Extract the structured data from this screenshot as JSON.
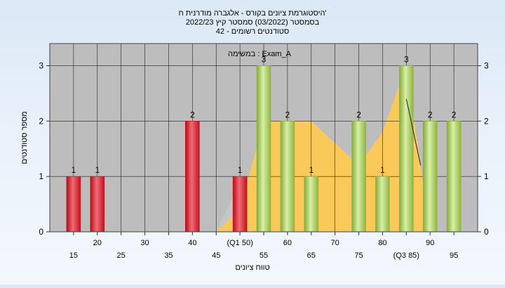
{
  "chart_data": {
    "type": "bar",
    "title_lines": [
      "היסטוגרמת ציונים בקורס - אלגברה מודרנית ח'",
      "בסמסטר  (03/2022)  סמסטר קיץ 2022/23",
      "סטודנטים רשומים - 42"
    ],
    "ylabel": "מספר סטודנטים",
    "xlabel": "טווח ציונים",
    "annotation": "במשימה : Exam_A",
    "ylim": [
      0,
      3.4
    ],
    "yticks": [
      0,
      1,
      2,
      3
    ],
    "xlim": [
      10,
      100
    ],
    "grid": true,
    "upper_tick_labels": [
      {
        "x": 20,
        "label": "20"
      },
      {
        "x": 30,
        "label": "30"
      },
      {
        "x": 40,
        "label": "40"
      },
      {
        "x": 50,
        "label": "(Q1 50)"
      },
      {
        "x": 60,
        "label": "60"
      },
      {
        "x": 70,
        "label": "70"
      },
      {
        "x": 80,
        "label": "80"
      },
      {
        "x": 90,
        "label": "90"
      }
    ],
    "lower_tick_labels": [
      {
        "x": 15,
        "label": "15"
      },
      {
        "x": 25,
        "label": "25"
      },
      {
        "x": 35,
        "label": "35"
      },
      {
        "x": 45,
        "label": "45"
      },
      {
        "x": 55,
        "label": "55"
      },
      {
        "x": 65,
        "label": "65"
      },
      {
        "x": 75,
        "label": "75"
      },
      {
        "x": 85,
        "label": "(Q3 85)"
      },
      {
        "x": 95,
        "label": "95"
      }
    ],
    "bars": [
      {
        "x": 15,
        "value": 1,
        "label": "1",
        "color": "red"
      },
      {
        "x": 20,
        "value": 1,
        "label": "1",
        "color": "red"
      },
      {
        "x": 40,
        "value": 2,
        "label": "2",
        "color": "red"
      },
      {
        "x": 50,
        "value": 1,
        "label": "1",
        "color": "red"
      },
      {
        "x": 55,
        "value": 3,
        "label": "3",
        "color": "green"
      },
      {
        "x": 60,
        "value": 2,
        "label": "2",
        "color": "green"
      },
      {
        "x": 65,
        "value": 1,
        "label": "1",
        "color": "green"
      },
      {
        "x": 75,
        "value": 2,
        "label": "2",
        "color": "green"
      },
      {
        "x": 80,
        "value": 1,
        "label": "1",
        "color": "green"
      },
      {
        "x": 85,
        "value": 3,
        "label": "3",
        "color": "green"
      },
      {
        "x": 90,
        "value": 2,
        "label": "2",
        "color": "green"
      },
      {
        "x": 95,
        "value": 2,
        "label": "2",
        "color": "green"
      }
    ],
    "area": {
      "color": "#f9c95a",
      "points": [
        [
          45,
          0
        ],
        [
          50,
          0.4
        ],
        [
          55,
          2.0
        ],
        [
          60,
          2.0
        ],
        [
          65,
          2.0
        ],
        [
          75,
          1.2
        ],
        [
          80,
          1.8
        ],
        [
          85,
          3.0
        ],
        [
          90,
          0.0
        ],
        [
          45,
          0
        ]
      ]
    },
    "area_ghost": {
      "color": "#c6c6c6",
      "points": [
        [
          45,
          0
        ],
        [
          50,
          0.9
        ],
        [
          50,
          0
        ],
        [
          45,
          0
        ]
      ]
    },
    "trend_line": {
      "color": "#222222",
      "points": [
        [
          85,
          2.4
        ],
        [
          88,
          1.2
        ]
      ]
    },
    "colors": {
      "plot_bg": "#bdbdbd",
      "grid": "#222222",
      "red_dark": "#c1121f",
      "red_light": "#f4727a",
      "green_dark": "#8fb33f",
      "green_light": "#d5eea0"
    }
  }
}
